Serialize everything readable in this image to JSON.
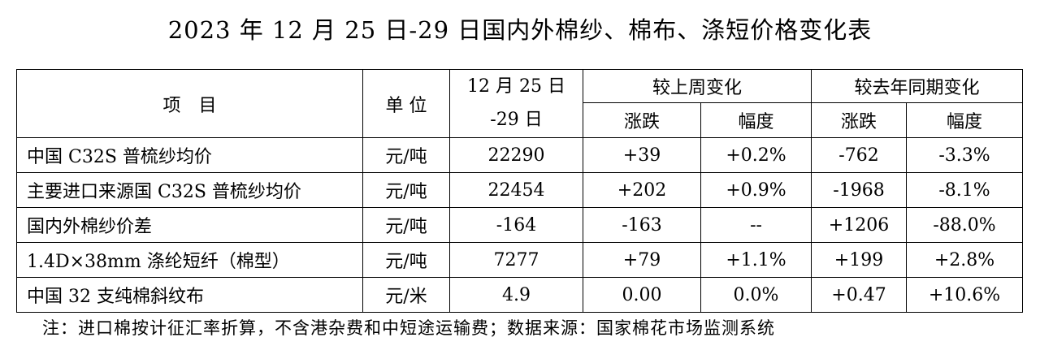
{
  "header": {
    "title": "2023 年 12 月 25 日-29 日国内外棉纱、棉布、涤短价格变化表"
  },
  "table": {
    "columns": {
      "item": "项　目",
      "unit": "单 位",
      "period": [
        "12 月 25 日",
        "-29 日"
      ],
      "weekly": "较上周变化",
      "yearly": "较去年同期变化",
      "sub": [
        "涨跌",
        "幅度",
        "涨跌",
        "幅度"
      ]
    },
    "rows": [
      [
        "中国 C32S 普梳纱均价",
        "元/吨",
        "22290",
        "+39",
        "+0.2%",
        "-762",
        "-3.3%"
      ],
      [
        "主要进口来源国 C32S 普梳纱均价",
        "元/吨",
        "22454",
        "+202",
        "+0.9%",
        "-1968",
        "-8.1%"
      ],
      [
        "国内外棉纱价差",
        "元/吨",
        "-164",
        "-163",
        "--",
        "+1206",
        "-88.0%"
      ],
      [
        "1.4D×38mm 涤纶短纤（棉型）",
        "元/吨",
        "7277",
        "+79",
        "+1.1%",
        "+199",
        "+2.8%"
      ],
      [
        "中国 32 支纯棉斜纹布",
        "元/米",
        "4.9",
        "0.00",
        "0.0%",
        "+0.47",
        "+10.6%"
      ]
    ]
  },
  "footer": {
    "note": "注：进口棉按计征汇率折算，不含港杂费和中短途运输费；数据来源：国家棉花市场监测系统"
  }
}
